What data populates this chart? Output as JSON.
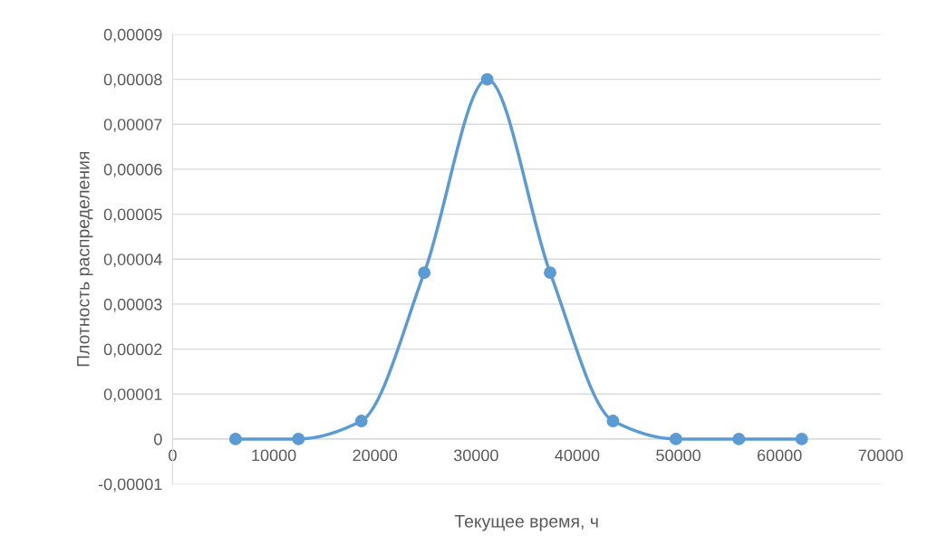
{
  "chart_data": {
    "type": "line",
    "xlabel": "Текущее время, ч",
    "ylabel": "Плотность распределения",
    "x": [
      6220,
      12440,
      18660,
      24880,
      31100,
      37320,
      43540,
      49760,
      55980,
      62200
    ],
    "series": [
      {
        "color": "#5b9bd5",
        "values": [
          0,
          0,
          4e-06,
          3.7e-05,
          8e-05,
          3.7e-05,
          4e-06,
          0,
          0,
          0
        ]
      }
    ],
    "marker": "circle",
    "grid": "y",
    "xlim": [
      0,
      70000
    ],
    "xticks": [
      0,
      10000,
      20000,
      30000,
      40000,
      50000,
      60000,
      70000
    ],
    "ylim": [
      -1e-05,
      9e-05
    ],
    "yticks": [
      {
        "value": -1e-05,
        "label": "-0,00001"
      },
      {
        "value": 0,
        "label": "0"
      },
      {
        "value": 1e-05,
        "label": "0,00001"
      },
      {
        "value": 2e-05,
        "label": "0,00002"
      },
      {
        "value": 3e-05,
        "label": "0,00003"
      },
      {
        "value": 4e-05,
        "label": "0,00004"
      },
      {
        "value": 5e-05,
        "label": "0,00005"
      },
      {
        "value": 6e-05,
        "label": "0,00006"
      },
      {
        "value": 7e-05,
        "label": "0,00007"
      },
      {
        "value": 8e-05,
        "label": "0,00008"
      },
      {
        "value": 9e-05,
        "label": "0,00009"
      }
    ]
  }
}
